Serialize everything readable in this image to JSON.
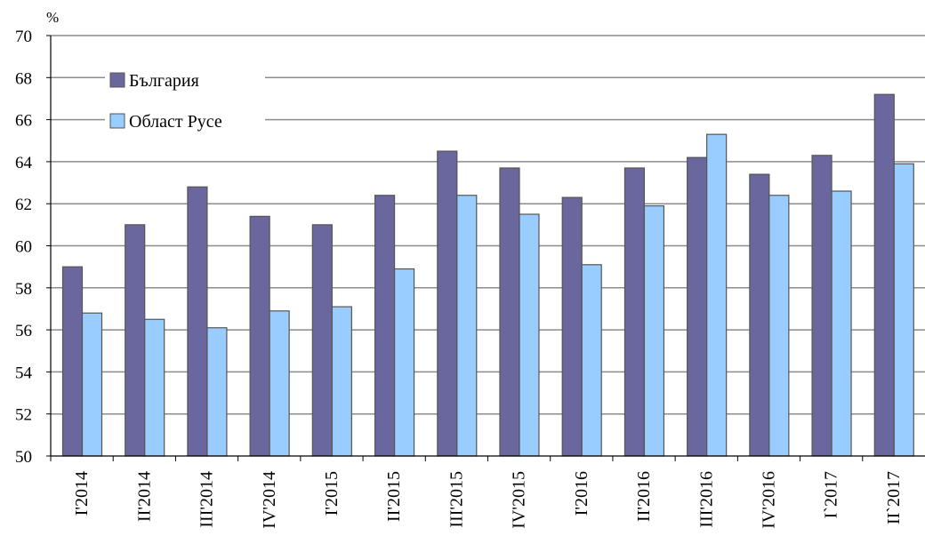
{
  "chart_data": {
    "type": "bar",
    "title": "",
    "unit_label": "%",
    "xlabel": "",
    "ylabel": "",
    "ylim": [
      50,
      70
    ],
    "ytick_step": 2,
    "grid": true,
    "legend_position": "top-left",
    "categories": [
      "I'2014",
      "II'2014",
      "III'2014",
      "IV'2014",
      "I'2015",
      "II'2015",
      "III'2015",
      "IV'2015",
      "I'2016",
      "II'2016",
      "III'2016",
      "IV'2016",
      "I`2017",
      "II`2017"
    ],
    "series": [
      {
        "name": "България",
        "color": "#6a679f",
        "values": [
          59.0,
          61.0,
          62.8,
          61.4,
          61.0,
          62.4,
          64.5,
          63.7,
          62.3,
          63.7,
          64.2,
          63.4,
          64.3,
          67.2
        ]
      },
      {
        "name": "Област Русе",
        "color": "#99ccff",
        "values": [
          56.8,
          56.5,
          56.1,
          56.9,
          57.1,
          58.9,
          62.4,
          61.5,
          59.1,
          61.9,
          65.3,
          62.4,
          62.6,
          63.9
        ]
      }
    ]
  }
}
